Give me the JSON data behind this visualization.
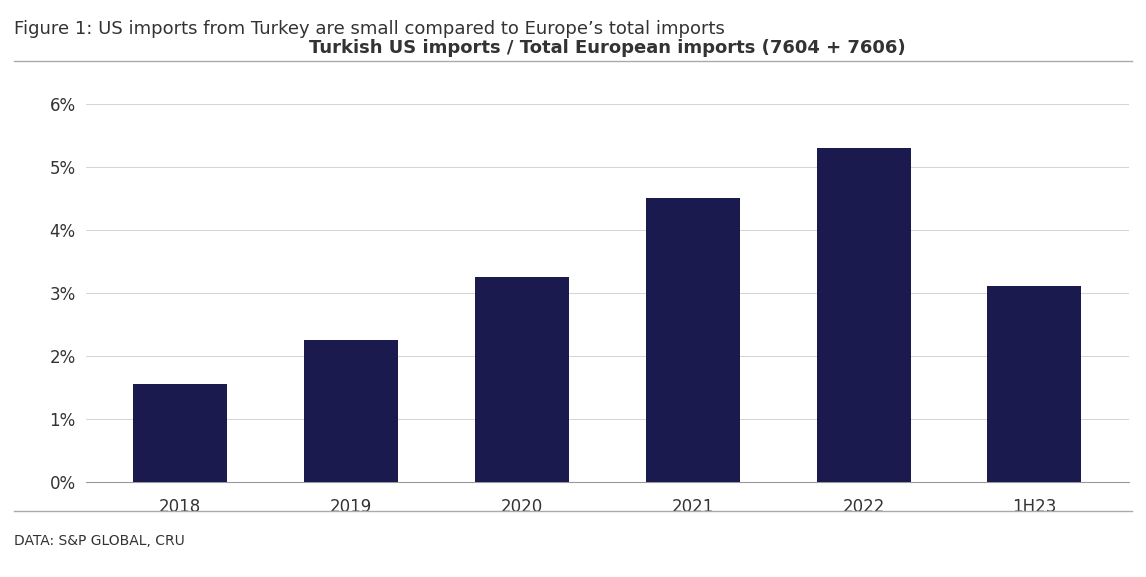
{
  "categories": [
    "2018",
    "2019",
    "2020",
    "2021",
    "2022",
    "1H23"
  ],
  "values": [
    0.0155,
    0.0225,
    0.0325,
    0.045,
    0.053,
    0.031
  ],
  "bar_color": "#1a1a4e",
  "title": "Turkish US imports / Total European imports (7604 + 7606)",
  "figure_title": "Figure 1: US imports from Turkey are small compared to Europe’s total imports",
  "footnote": "DATA: S&P GLOBAL, CRU",
  "ylim": [
    0,
    0.065
  ],
  "yticks": [
    0,
    0.01,
    0.02,
    0.03,
    0.04,
    0.05,
    0.06
  ],
  "title_fontsize": 13,
  "figure_title_fontsize": 13,
  "footnote_fontsize": 10,
  "tick_fontsize": 12,
  "background_color": "#ffffff",
  "bar_width": 0.55,
  "separator_color": "#aaaaaa",
  "grid_color": "#cccccc",
  "bottom_spine_color": "#999999",
  "text_color": "#333333"
}
